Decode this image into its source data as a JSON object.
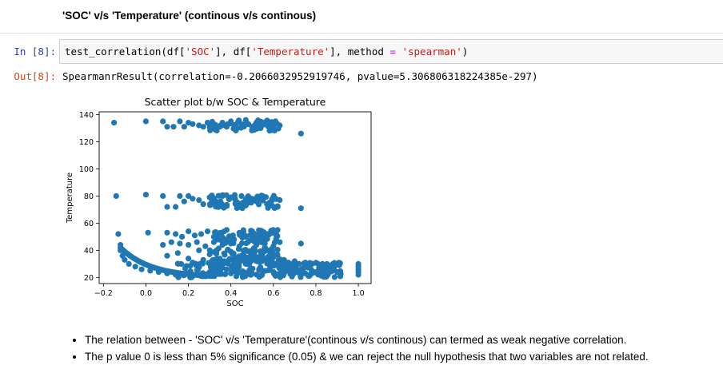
{
  "markdown": {
    "heading": "'SOC' v/s 'Temperature' (continous v/s continous)"
  },
  "cell": {
    "in_prompt": "In [8]:",
    "out_prompt": "Out[8]:",
    "code": {
      "func": "test_correlation(df[",
      "arg1": "'SOC'",
      "mid": "], df[",
      "arg2": "'Temperature'",
      "mid2": "], method ",
      "eq": "=",
      "sp": " ",
      "arg3": "'spearman'",
      "close": ")"
    },
    "output": "SpearmanrResult(correlation=-0.2066032952919746, pvalue=5.306806318224385e-297)"
  },
  "chart_data": {
    "type": "scatter",
    "title": "Scatter plot b/w SOC & Temperature",
    "xlabel": "SOC",
    "ylabel": "Temperature",
    "xlim": [
      -0.22,
      1.06
    ],
    "ylim": [
      15.5,
      142
    ],
    "xticks": [
      -0.2,
      0.0,
      0.2,
      0.4,
      0.6,
      0.8,
      1.0
    ],
    "xtick_labels": [
      "−0.2",
      "0.0",
      "0.2",
      "0.4",
      "0.6",
      "0.8",
      "1.0"
    ],
    "yticks": [
      20,
      40,
      60,
      80,
      100,
      120,
      140
    ],
    "ytick_labels": [
      "20",
      "40",
      "60",
      "80",
      "100",
      "120",
      "140"
    ],
    "color": "#1f77b4",
    "grid": false,
    "points": [
      [
        -0.15,
        134
      ],
      [
        0.0,
        135
      ],
      [
        0.08,
        135
      ],
      [
        0.1,
        131
      ],
      [
        0.13,
        131
      ],
      [
        0.16,
        135
      ],
      [
        0.18,
        131
      ],
      [
        0.2,
        134
      ],
      [
        0.22,
        133
      ],
      [
        0.25,
        132
      ],
      [
        0.27,
        131
      ],
      [
        0.29,
        134
      ],
      [
        0.31,
        132
      ],
      [
        0.33,
        130
      ],
      [
        0.36,
        134
      ],
      [
        0.38,
        131
      ],
      [
        0.4,
        135
      ],
      [
        0.43,
        130
      ],
      [
        0.45,
        133
      ],
      [
        0.47,
        136
      ],
      [
        0.5,
        131
      ],
      [
        0.52,
        134
      ],
      [
        0.54,
        130
      ],
      [
        0.57,
        133
      ],
      [
        0.59,
        131
      ],
      [
        0.61,
        135
      ],
      [
        0.63,
        132
      ],
      [
        0.73,
        126
      ],
      [
        -0.14,
        80
      ],
      [
        0.0,
        81
      ],
      [
        0.08,
        80
      ],
      [
        0.1,
        72
      ],
      [
        0.14,
        72
      ],
      [
        0.16,
        80
      ],
      [
        0.18,
        76
      ],
      [
        0.2,
        80
      ],
      [
        0.22,
        78
      ],
      [
        0.25,
        77
      ],
      [
        0.27,
        74
      ],
      [
        0.3,
        79
      ],
      [
        0.33,
        76
      ],
      [
        0.36,
        80
      ],
      [
        0.38,
        73
      ],
      [
        0.4,
        79
      ],
      [
        0.43,
        75
      ],
      [
        0.45,
        80
      ],
      [
        0.47,
        73
      ],
      [
        0.5,
        78
      ],
      [
        0.52,
        76
      ],
      [
        0.55,
        80
      ],
      [
        0.57,
        74
      ],
      [
        0.6,
        79
      ],
      [
        0.62,
        72
      ],
      [
        0.63,
        77
      ],
      [
        0.73,
        71
      ],
      [
        -0.13,
        52
      ],
      [
        0.01,
        53
      ],
      [
        0.1,
        53
      ],
      [
        0.14,
        52
      ],
      [
        0.17,
        50
      ],
      [
        0.2,
        54
      ],
      [
        0.23,
        51
      ],
      [
        0.26,
        52
      ],
      [
        0.29,
        54
      ],
      [
        0.32,
        50
      ],
      [
        0.35,
        53
      ],
      [
        0.38,
        55
      ],
      [
        0.41,
        51
      ],
      [
        0.44,
        53
      ],
      [
        0.47,
        50
      ],
      [
        0.5,
        54
      ],
      [
        0.53,
        52
      ],
      [
        0.56,
        50
      ],
      [
        0.59,
        53
      ],
      [
        0.62,
        55
      ],
      [
        -0.12,
        44
      ],
      [
        0.08,
        44
      ],
      [
        0.12,
        46
      ],
      [
        0.16,
        45
      ],
      [
        0.2,
        44
      ],
      [
        0.24,
        46
      ],
      [
        0.28,
        43
      ],
      [
        0.32,
        46
      ],
      [
        0.36,
        44
      ],
      [
        0.4,
        45
      ],
      [
        0.44,
        43
      ],
      [
        0.48,
        46
      ],
      [
        0.52,
        44
      ],
      [
        0.56,
        45
      ],
      [
        0.6,
        43
      ],
      [
        0.63,
        46
      ],
      [
        0.73,
        45
      ],
      [
        -0.12,
        40
      ],
      [
        -0.11,
        36
      ],
      [
        -0.1,
        33
      ],
      [
        -0.08,
        30
      ],
      [
        -0.05,
        28
      ],
      [
        -0.02,
        26
      ],
      [
        0.02,
        25
      ],
      [
        0.06,
        24
      ],
      [
        0.1,
        23
      ],
      [
        0.14,
        22
      ],
      [
        0.18,
        22
      ],
      [
        0.22,
        21
      ],
      [
        0.26,
        21
      ],
      [
        0.3,
        21
      ],
      [
        0.1,
        36
      ],
      [
        0.15,
        38
      ],
      [
        0.2,
        34
      ],
      [
        0.25,
        40
      ],
      [
        0.3,
        37
      ],
      [
        0.35,
        33
      ],
      [
        0.4,
        39
      ],
      [
        0.45,
        36
      ],
      [
        0.5,
        34
      ],
      [
        0.55,
        38
      ],
      [
        0.6,
        35
      ],
      [
        0.65,
        33
      ],
      [
        0.7,
        32
      ],
      [
        0.75,
        31
      ],
      [
        0.22,
        31
      ],
      [
        0.27,
        33
      ],
      [
        0.32,
        30
      ],
      [
        0.37,
        32
      ],
      [
        0.42,
        31
      ],
      [
        0.47,
        30
      ],
      [
        0.52,
        32
      ],
      [
        0.57,
        31
      ],
      [
        0.62,
        30
      ],
      [
        0.67,
        31
      ],
      [
        0.72,
        30
      ],
      [
        0.77,
        29
      ],
      [
        0.81,
        30
      ],
      [
        0.85,
        29
      ],
      [
        0.88,
        30
      ],
      [
        0.91,
        29
      ],
      [
        0.3,
        24
      ],
      [
        0.35,
        25
      ],
      [
        0.4,
        23
      ],
      [
        0.45,
        24
      ],
      [
        0.5,
        23
      ],
      [
        0.55,
        25
      ],
      [
        0.6,
        24
      ],
      [
        0.65,
        23
      ],
      [
        0.7,
        24
      ],
      [
        0.75,
        23
      ],
      [
        0.8,
        24
      ],
      [
        0.85,
        23
      ],
      [
        0.9,
        24
      ],
      [
        1.0,
        30
      ],
      [
        1.0,
        28
      ],
      [
        1.0,
        26
      ],
      [
        1.0,
        24
      ],
      [
        1.0,
        22
      ]
    ],
    "dense_bands": [
      {
        "x": [
          0.15,
          0.92
        ],
        "y": [
          20,
          31
        ]
      },
      {
        "x": [
          0.3,
          0.64
        ],
        "y": [
          30,
          42
        ]
      },
      {
        "x": [
          0.32,
          0.62
        ],
        "y": [
          45,
          55
        ]
      },
      {
        "x": [
          0.3,
          0.63
        ],
        "y": [
          71,
          81
        ]
      },
      {
        "x": [
          0.3,
          0.63
        ],
        "y": [
          128,
          136
        ]
      }
    ]
  },
  "notes": {
    "bullets": [
      "The relation between - 'SOC' v/s 'Temperature'(continous v/s continous) can termed as weak negative correlation.",
      "The p value 0 is less than 5% significance (0.05) & we can reject the null hypothesis that two variables are not related."
    ]
  }
}
